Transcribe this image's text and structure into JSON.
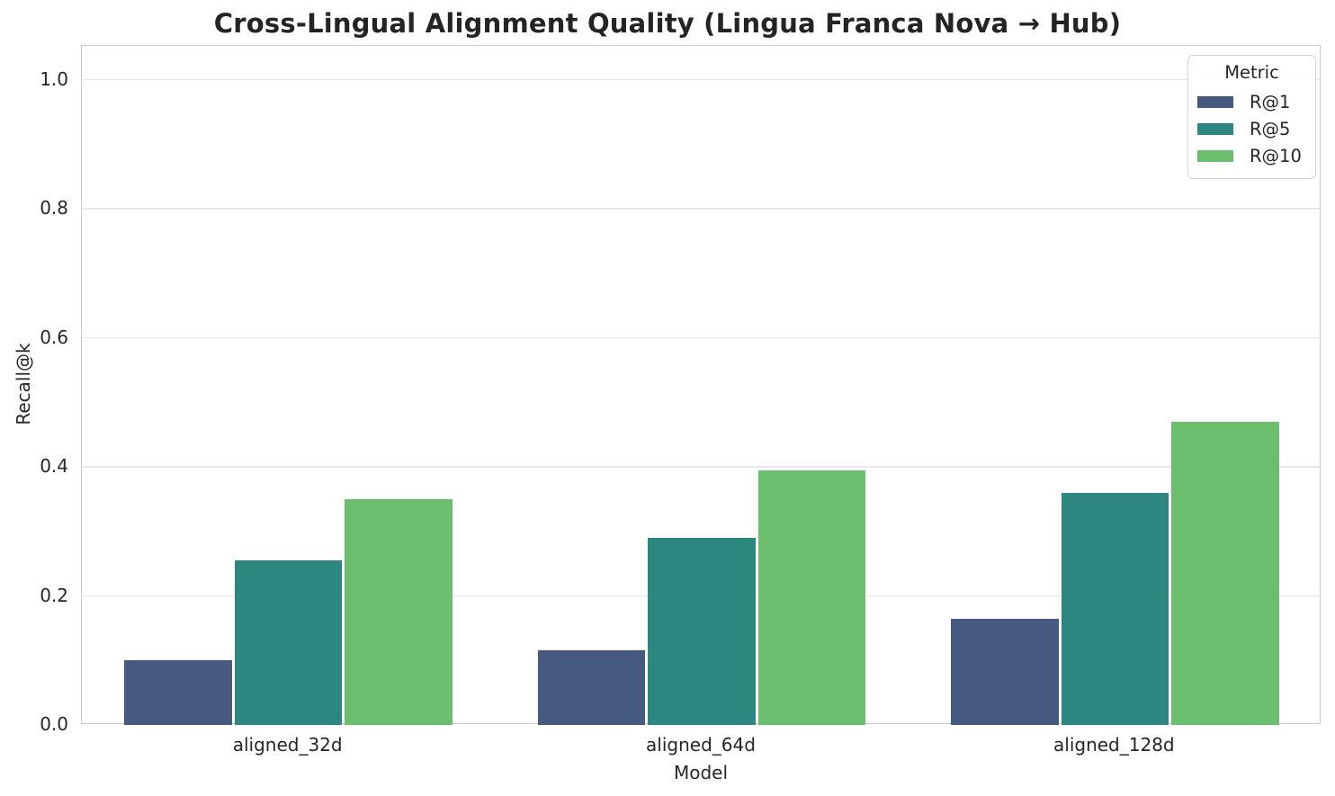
{
  "chart_data": {
    "type": "bar",
    "title": "Cross-Lingual Alignment Quality (Lingua Franca Nova → Hub)",
    "xlabel": "Model",
    "ylabel": "Recall@k",
    "legend_title": "Metric",
    "legend_position": "upper right",
    "grid": "horizontal",
    "categories": [
      "aligned_32d",
      "aligned_64d",
      "aligned_128d"
    ],
    "series": [
      {
        "name": "R@1",
        "color": "#46597e",
        "values": [
          0.1,
          0.115,
          0.165
        ]
      },
      {
        "name": "R@5",
        "color": "#2e8681",
        "values": [
          0.255,
          0.29,
          0.36
        ]
      },
      {
        "name": "R@10",
        "color": "#6abe6d",
        "values": [
          0.35,
          0.395,
          0.47
        ]
      }
    ],
    "yticks": [
      0.0,
      0.2,
      0.4,
      0.6,
      0.8,
      1.0
    ],
    "ylim": [
      0,
      1.052
    ]
  }
}
